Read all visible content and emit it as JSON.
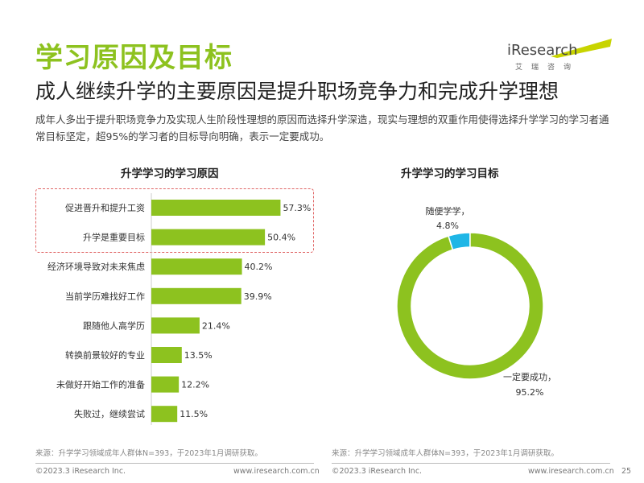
{
  "page": {
    "section_title": "学习原因及目标",
    "headline": "成人继续升学的主要原因是提升职场竞争力和完成升学理想",
    "summary": "成年人多出于提升职场竞争力及实现人生阶段性理想的原因而选择升学深造，现实与理想的双重作用使得选择升学学习的学习者通常目标坚定，超95%的学习者的目标导向明确，表示一定要成功。",
    "page_number": "25"
  },
  "logo": {
    "text": "iResearch",
    "sub": "艾瑞咨询"
  },
  "colors": {
    "accent_green": "#8dc21f",
    "accent_cyan": "#1fb6e6",
    "highlight_border": "#e06666"
  },
  "chart_data": [
    {
      "type": "bar",
      "orientation": "horizontal",
      "title": "升学学习的学习原因",
      "categories": [
        "促进晋升和提升工资",
        "升学是重要目标",
        "经济环境导致对未来焦虑",
        "当前学历难找好工作",
        "跟随他人高学历",
        "转换前景较好的专业",
        "未做好开始工作的准备",
        "失败过，继续尝试"
      ],
      "values": [
        57.3,
        50.4,
        40.2,
        39.9,
        21.4,
        13.5,
        12.2,
        11.5
      ],
      "value_labels": [
        "57.3%",
        "50.4%",
        "40.2%",
        "39.9%",
        "21.4%",
        "13.5%",
        "12.2%",
        "11.5%"
      ],
      "unit": "%",
      "xlim": [
        0,
        60
      ],
      "highlighted_categories": [
        "促进晋升和提升工资",
        "升学是重要目标"
      ],
      "color": "#8dc21f"
    },
    {
      "type": "pie",
      "variant": "donut",
      "title": "升学学习的学习目标",
      "slices": [
        {
          "label": "一定要成功，",
          "value": 95.2,
          "value_label": "95.2%",
          "color": "#8dc21f"
        },
        {
          "label": "随便学学，",
          "value": 4.8,
          "value_label": "4.8%",
          "color": "#1fb6e6"
        }
      ],
      "unit": "%"
    }
  ],
  "footer": {
    "source_left": "来源：升学学习领域成年人群体N=393，于2023年1月调研获取。",
    "source_right": "来源：升学学习领域成年人群体N=393，于2023年1月调研获取。",
    "copyright_left": "©2023.3 iResearch Inc.",
    "url_left": "www.iresearch.com.cn",
    "copyright_right": "©2023.3 iResearch Inc.",
    "url_right": "www.iresearch.com.cn"
  }
}
